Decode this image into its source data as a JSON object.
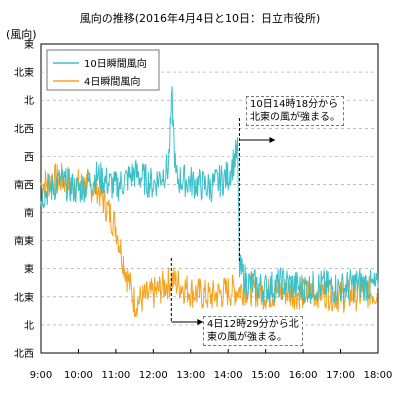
{
  "chart_data": {
    "type": "line",
    "title": "風向の推移(2016年4月4日と10日：日立市役所)",
    "ylabel": "(風向)",
    "xlabel": "",
    "x_tick_labels": [
      "9:00",
      "10:00",
      "11:00",
      "12:00",
      "13:00",
      "14:00",
      "15:00",
      "16:00",
      "17:00",
      "18:00"
    ],
    "y_tick_labels": [
      "北西",
      "北",
      "北東",
      "東",
      "南東",
      "南",
      "南西",
      "西",
      "北西",
      "北",
      "北東",
      "東"
    ],
    "ylim": [
      0,
      11
    ],
    "xlim": [
      9,
      18
    ],
    "grid": "dashed",
    "legend_position": "top-left",
    "series": [
      {
        "name": "10日瞬間風向",
        "color": "#3cc0c8",
        "x": [
          9.0,
          9.5,
          10.0,
          10.5,
          11.0,
          11.5,
          12.0,
          12.4,
          12.5,
          12.6,
          13.0,
          13.5,
          14.0,
          14.25,
          14.3,
          14.5,
          15.0,
          15.5,
          16.0,
          16.5,
          17.0,
          17.5,
          18.0
        ],
        "values": [
          5.6,
          6.1,
          5.8,
          6.3,
          5.9,
          6.4,
          6.0,
          6.6,
          9.0,
          6.2,
          6.1,
          5.9,
          6.3,
          7.2,
          3.0,
          2.5,
          2.3,
          2.5,
          2.3,
          2.4,
          2.3,
          2.5,
          2.3
        ]
      },
      {
        "name": "4日瞬間風向",
        "color": "#f5a21e",
        "x": [
          9.0,
          9.5,
          10.0,
          10.5,
          11.0,
          11.25,
          11.5,
          12.0,
          12.5,
          13.0,
          13.5,
          14.0,
          14.5,
          15.0,
          15.5,
          16.0,
          16.5,
          17.0,
          17.5,
          18.0
        ],
        "values": [
          6.0,
          6.2,
          6.0,
          5.9,
          4.5,
          3.0,
          1.8,
          2.1,
          2.6,
          2.2,
          2.0,
          2.2,
          2.3,
          2.1,
          2.2,
          2.1,
          2.2,
          2.0,
          2.1,
          2.2
        ]
      }
    ],
    "annotations": [
      {
        "id": "ann-10",
        "lines": [
          "10日14時18分から",
          "北東の風が強まる。"
        ],
        "x": 14.3
      },
      {
        "id": "ann-4",
        "lines": [
          "4日12時29分から北",
          "東の風が強まる。"
        ],
        "x": 12.48
      }
    ]
  }
}
